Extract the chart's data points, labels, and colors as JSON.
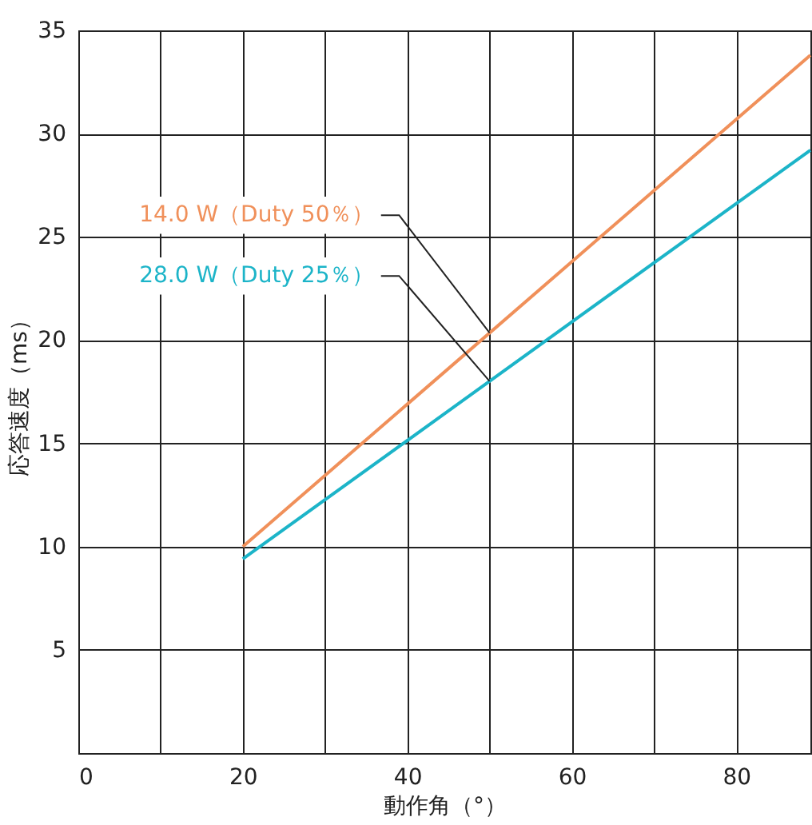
{
  "chart_data": {
    "type": "line",
    "xlabel": "動作角（°）",
    "ylabel": "応答速度（ms）",
    "x": [
      20,
      89
    ],
    "series": [
      {
        "name": "14.0 W（Duty 50％）",
        "color": "#f0905a",
        "values": [
          10,
          33.8
        ]
      },
      {
        "name": "28.0 W（Duty 25％）",
        "color": "#1cb4c8",
        "values": [
          9.4,
          29.2
        ]
      }
    ],
    "xlim": [
      0,
      89
    ],
    "xticks": [
      0,
      {
        "value": 10,
        "label": null
      },
      20,
      {
        "value": 30,
        "label": null
      },
      40,
      {
        "value": 50,
        "label": null
      },
      60,
      {
        "value": 70,
        "label": null
      },
      80
    ],
    "ylim": [
      0,
      35
    ],
    "yticks": [
      {
        "value": 0,
        "label": null
      },
      5,
      10,
      15,
      20,
      25,
      30,
      35
    ],
    "grid": true,
    "legend": false,
    "marker": "none",
    "line_style": "solid"
  }
}
